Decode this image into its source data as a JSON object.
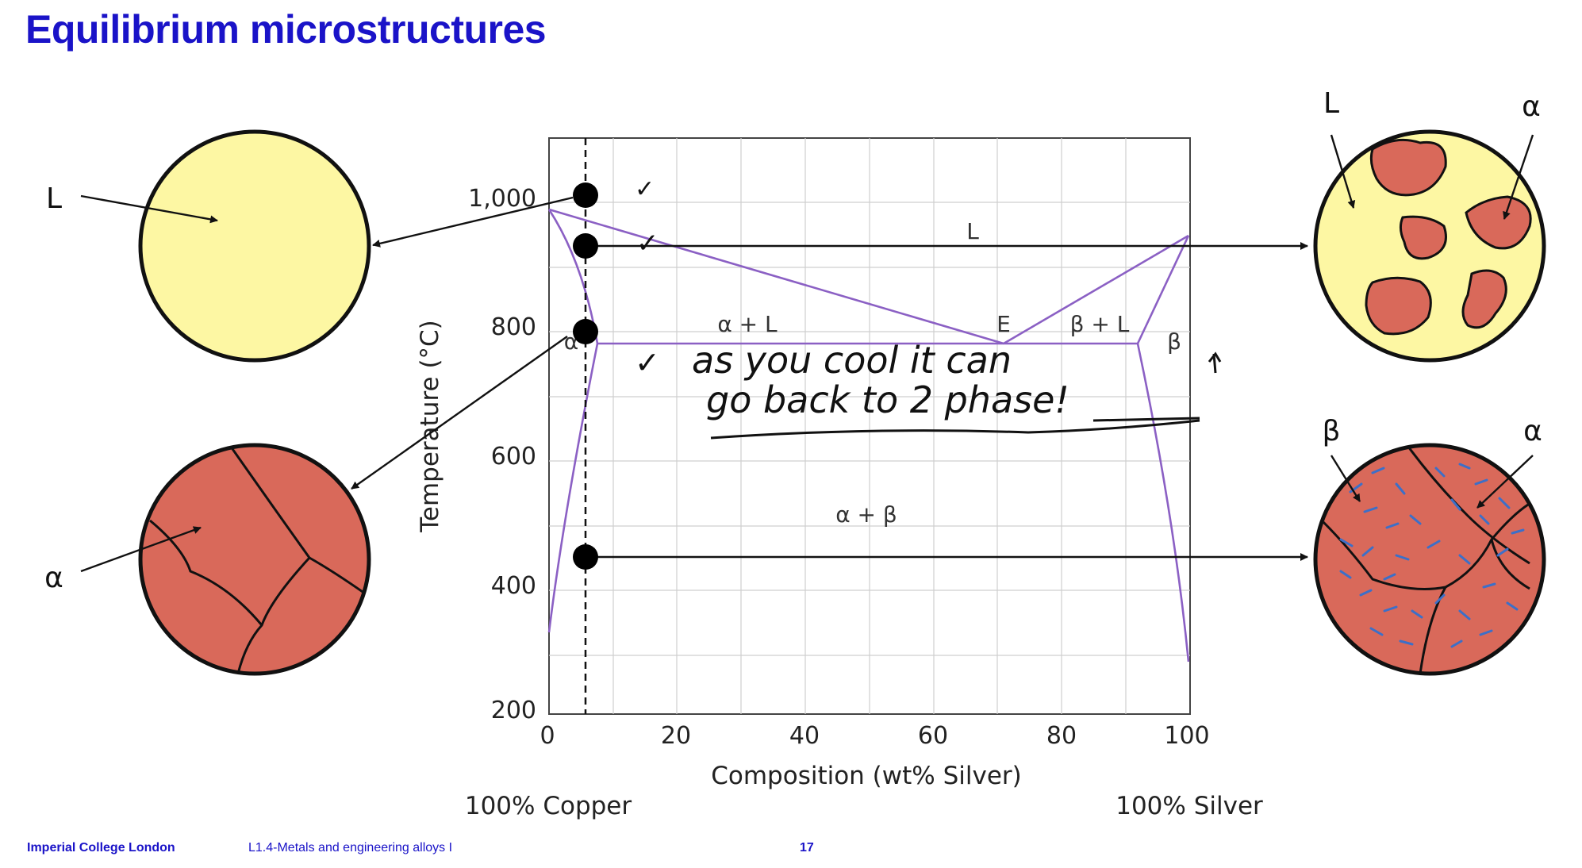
{
  "slide": {
    "title": "Equilibrium microstructures"
  },
  "footer": {
    "org": "Imperial College London",
    "lecture": "L1.4-Metals and engineering alloys I",
    "page": "17"
  },
  "colors": {
    "title": "#1a13c8",
    "liquid": "#fdf7a3",
    "alpha": "#d9695a",
    "beta_needles": "#3c6fc8",
    "phase_lines": "#8b60c4",
    "grid": "#cccccc"
  },
  "axes": {
    "ylabel": "Temperature (°C)",
    "xlabel": "Composition (wt% Silver)",
    "x_ticks": [
      "0",
      "20",
      "40",
      "60",
      "80",
      "100"
    ],
    "y_ticks": [
      "1,000",
      "800",
      "600",
      "400",
      "200"
    ],
    "left_end": "100% Copper",
    "right_end": "100% Silver"
  },
  "region_labels": {
    "L": "L",
    "alpha_L": "α + L",
    "E": "E",
    "beta_L": "β + L",
    "beta": "β",
    "alpha": "α",
    "alpha_beta": "α + β"
  },
  "micro_labels": {
    "left_top": "L",
    "left_bottom": "α",
    "right_top_L": "L",
    "right_top_alpha": "α",
    "right_bottom_beta": "β",
    "right_bottom_alpha": "α"
  },
  "annotations": {
    "check_1": "✓",
    "check_2": "✓",
    "check_3": "✓",
    "line_1": "as you cool it can",
    "line_2": "go back to 2 phase!"
  }
}
